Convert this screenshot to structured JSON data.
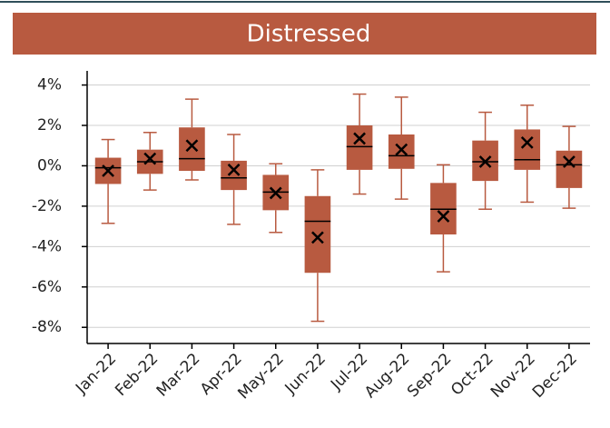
{
  "chart_data": {
    "type": "box",
    "title": "Distressed",
    "categories": [
      "Jan-22",
      "Feb-22",
      "Mar-22",
      "Apr-22",
      "May-22",
      "Jun-22",
      "Jul-22",
      "Aug-22",
      "Sep-22",
      "Oct-22",
      "Nov-22",
      "Dec-22"
    ],
    "low": [
      -2.85,
      -1.2,
      -0.7,
      -2.9,
      -3.3,
      -7.7,
      -1.4,
      -1.65,
      -5.25,
      -2.15,
      -1.8,
      -2.1
    ],
    "q1": [
      -0.9,
      -0.4,
      -0.25,
      -1.2,
      -2.2,
      -5.3,
      -0.2,
      -0.15,
      -3.4,
      -0.75,
      -0.2,
      -1.1
    ],
    "median": [
      -0.1,
      0.2,
      0.35,
      -0.6,
      -1.3,
      -2.75,
      0.95,
      0.5,
      -2.15,
      0.2,
      0.3,
      0.05
    ],
    "q3": [
      0.4,
      0.8,
      1.9,
      0.25,
      -0.45,
      -1.5,
      2.0,
      1.55,
      -0.85,
      1.25,
      1.8,
      0.75
    ],
    "high": [
      1.3,
      1.65,
      3.3,
      1.55,
      0.1,
      -0.2,
      3.55,
      3.4,
      0.05,
      2.65,
      3.0,
      1.95
    ],
    "mean": [
      -0.25,
      0.35,
      1.0,
      -0.2,
      -1.35,
      -3.55,
      1.35,
      0.8,
      -2.5,
      0.2,
      1.15,
      0.2
    ],
    "color": "#b85a40",
    "ylim": [
      -8.8,
      4.7
    ],
    "yticks": [
      {
        "value": 4,
        "label": "4%"
      },
      {
        "value": 2,
        "label": "2%"
      },
      {
        "value": 0,
        "label": "0%"
      },
      {
        "value": -2,
        "label": "-2%"
      },
      {
        "value": -4,
        "label": "-4%"
      },
      {
        "value": -6,
        "label": "-6%"
      },
      {
        "value": -8,
        "label": "-8%"
      }
    ],
    "grid": true
  }
}
